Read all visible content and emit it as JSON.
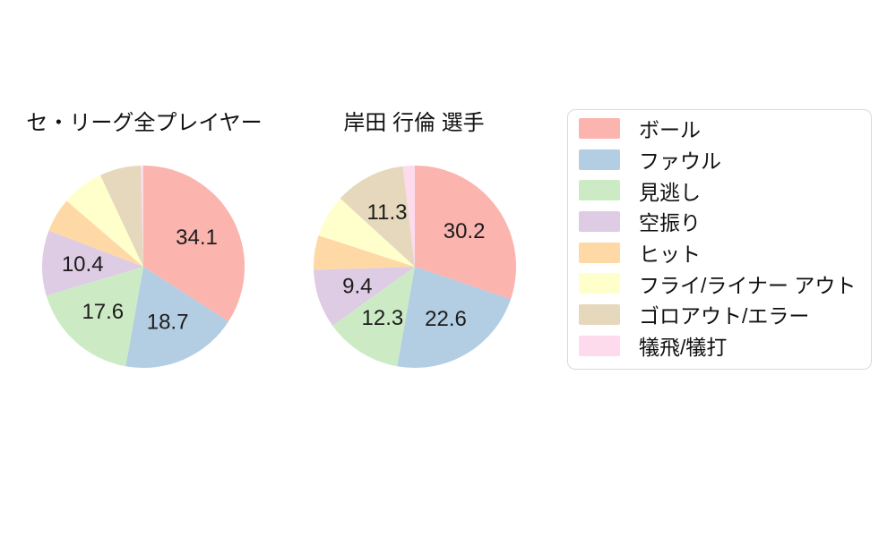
{
  "figure": {
    "background": "#ffffff",
    "text_color": "#111111",
    "legend_border_color": "#d9d9d9",
    "slice_label_color": "#1c1c1c"
  },
  "palette": [
    "#fbb4ae",
    "#b3cde3",
    "#ccebc5",
    "#decbe4",
    "#fed9a6",
    "#ffffcc",
    "#e5d8bd",
    "#fddaec"
  ],
  "legend": {
    "items": [
      {
        "label": "ボール",
        "color": "#fbb4ae"
      },
      {
        "label": "ファウル",
        "color": "#b3cde3"
      },
      {
        "label": "見逃し",
        "color": "#ccebc5"
      },
      {
        "label": "空振り",
        "color": "#decbe4"
      },
      {
        "label": "ヒット",
        "color": "#fed9a6"
      },
      {
        "label": "フライ/ライナー アウト",
        "color": "#ffffcc"
      },
      {
        "label": "ゴロアウト/エラー",
        "color": "#e5d8bd"
      },
      {
        "label": "犠飛/犠打",
        "color": "#fddaec"
      }
    ]
  },
  "chart_data": [
    {
      "type": "pie",
      "title": "セ・リーグ全プレイヤー",
      "start_angle": "top",
      "direction": "clockwise",
      "label_distance": 0.6,
      "slices": [
        {
          "name": "ボール",
          "color": "#fbb4ae",
          "value": 34.1,
          "label": "34.1"
        },
        {
          "name": "ファウル",
          "color": "#b3cde3",
          "value": 18.7,
          "label": "18.7"
        },
        {
          "name": "見逃し",
          "color": "#ccebc5",
          "value": 17.6,
          "label": "17.6"
        },
        {
          "name": "空振り",
          "color": "#decbe4",
          "value": 10.4,
          "label": "10.4"
        },
        {
          "name": "ヒット",
          "color": "#fed9a6",
          "value": 5.5,
          "label": ""
        },
        {
          "name": "フライ/ライナー アウト",
          "color": "#ffffcc",
          "value": 6.7,
          "label": ""
        },
        {
          "name": "ゴロアウト/エラー",
          "color": "#e5d8bd",
          "value": 6.6,
          "label": ""
        },
        {
          "name": "犠飛/犠打",
          "color": "#fddaec",
          "value": 0.4,
          "label": ""
        }
      ]
    },
    {
      "type": "pie",
      "title": "岸田 行倫 選手",
      "start_angle": "top",
      "direction": "clockwise",
      "label_distance": 0.6,
      "slices": [
        {
          "name": "ボール",
          "color": "#fbb4ae",
          "value": 30.2,
          "label": "30.2"
        },
        {
          "name": "ファウル",
          "color": "#b3cde3",
          "value": 22.6,
          "label": "22.6"
        },
        {
          "name": "見逃し",
          "color": "#ccebc5",
          "value": 12.3,
          "label": "12.3"
        },
        {
          "name": "空振り",
          "color": "#decbe4",
          "value": 9.4,
          "label": "9.4"
        },
        {
          "name": "ヒット",
          "color": "#fed9a6",
          "value": 5.5,
          "label": ""
        },
        {
          "name": "フライ/ライナー アウト",
          "color": "#ffffcc",
          "value": 6.8,
          "label": ""
        },
        {
          "name": "ゴロアウト/エラー",
          "color": "#e5d8bd",
          "value": 11.3,
          "label": "11.3"
        },
        {
          "name": "犠飛/犠打",
          "color": "#fddaec",
          "value": 1.9,
          "label": ""
        }
      ]
    }
  ]
}
